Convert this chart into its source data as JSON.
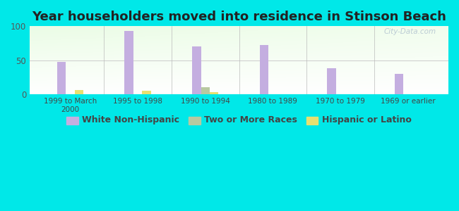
{
  "title": "Year householders moved into residence in Stinson Beach",
  "categories": [
    "1999 to March\n2000",
    "1995 to 1998",
    "1990 to 1994",
    "1980 to 1989",
    "1970 to 1979",
    "1969 or earlier"
  ],
  "white_non_hispanic": [
    48,
    93,
    70,
    72,
    38,
    30
  ],
  "two_or_more_races": [
    0,
    0,
    11,
    0,
    0,
    0
  ],
  "hispanic_or_latino": [
    6,
    5,
    3,
    0,
    0,
    0
  ],
  "white_color": "#c4aee0",
  "two_races_color": "#b8c9a0",
  "hispanic_color": "#e8e070",
  "background_outer": "#00e8e8",
  "ylim": [
    0,
    100
  ],
  "yticks": [
    0,
    50,
    100
  ],
  "title_fontsize": 13,
  "legend_fontsize": 9,
  "watermark": "City-Data.com"
}
